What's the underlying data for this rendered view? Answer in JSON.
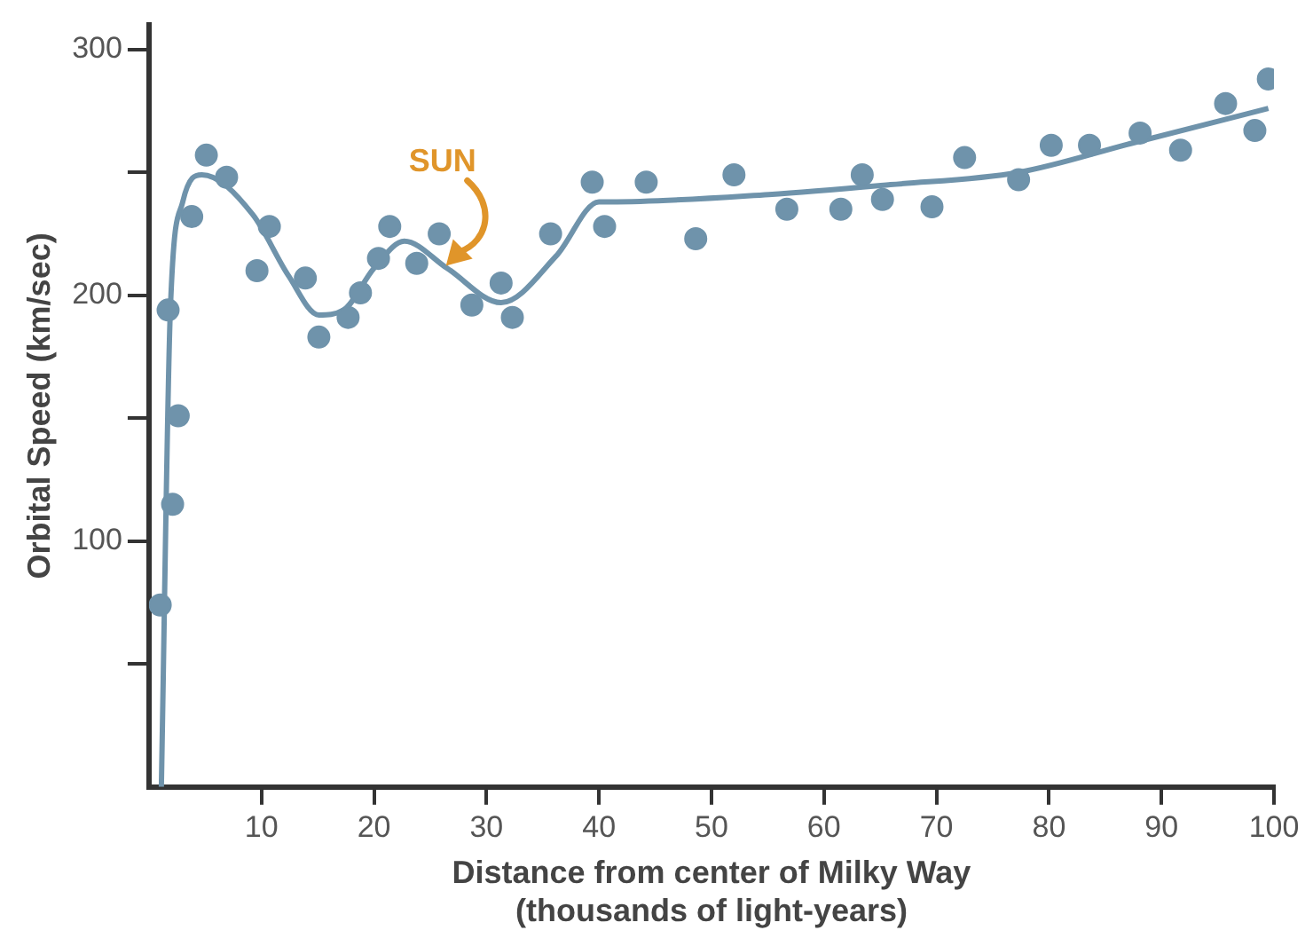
{
  "chart_data": {
    "type": "scatter",
    "xlabel": "Distance from center of Milky Way\n(thousands of light-years)",
    "ylabel": "Orbital Speed (km/sec)",
    "xlim": [
      0,
      100
    ],
    "xticks": [
      10,
      20,
      30,
      40,
      50,
      60,
      70,
      80,
      90,
      100
    ],
    "ylim": [
      0,
      310
    ],
    "yticks": [
      {
        "value": 50,
        "label": null
      },
      100,
      {
        "value": 150,
        "label": null
      },
      200,
      {
        "value": 250,
        "label": null
      },
      300
    ],
    "grid": false,
    "legend": false,
    "annotations": [
      {
        "text": "SUN",
        "x": 26.4,
        "y": 212
      }
    ],
    "series": [
      {
        "type": "scatter",
        "color": "#6f93ab",
        "marker": "circle",
        "x": [
          1.0,
          1.7,
          2.1,
          2.6,
          3.8,
          5.1,
          6.9,
          9.6,
          10.7,
          13.9,
          15.1,
          17.7,
          18.8,
          20.4,
          21.4,
          23.8,
          25.8,
          28.7,
          31.3,
          32.3,
          35.7,
          39.4,
          40.5,
          44.2,
          48.6,
          52.0,
          56.7,
          61.5,
          63.4,
          65.2,
          69.6,
          72.5,
          77.3,
          80.2,
          83.6,
          88.1,
          91.7,
          95.7,
          98.3,
          99.5
        ],
        "values": [
          74,
          194,
          115,
          151,
          232,
          257,
          248,
          210,
          228,
          207,
          183,
          191,
          201,
          215,
          228,
          213,
          225,
          196,
          205,
          191,
          225,
          246,
          228,
          246,
          223,
          249,
          235,
          235,
          249,
          239,
          236,
          256,
          247,
          261,
          261,
          266,
          259,
          278,
          267,
          288
        ]
      },
      {
        "type": "line",
        "color": "#6f93ab",
        "marker": "none",
        "line_style": "solid",
        "x": [
          1.1,
          1.9,
          3.0,
          4.7,
          9.2,
          12.4,
          15.1,
          17.3,
          20.0,
          22.7,
          26.5,
          31.3,
          36.2,
          40.0,
          41.0,
          55.1,
          65.9,
          77.3,
          87.5,
          99.5
        ],
        "values": [
          0,
          194,
          238,
          249,
          233,
          208,
          192,
          194,
          211,
          222,
          211,
          197,
          216,
          238,
          238,
          241,
          245,
          250,
          262,
          276
        ]
      }
    ]
  }
}
